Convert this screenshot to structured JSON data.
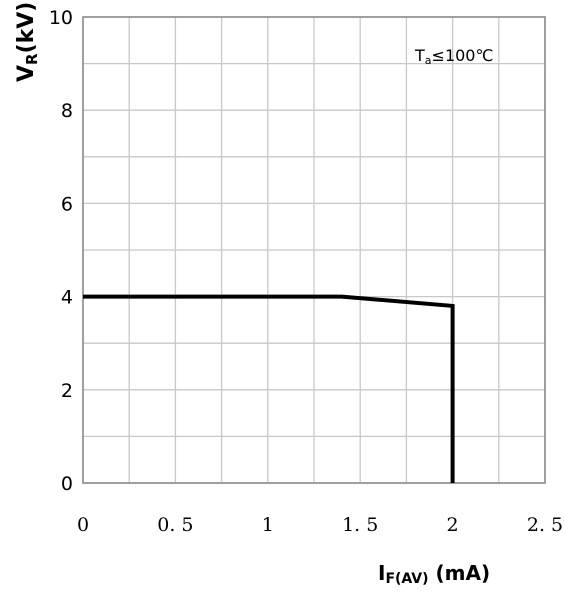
{
  "chart_data": {
    "type": "line",
    "title": "",
    "xlabel": {
      "main": "I",
      "sub": "F(AV)",
      "unit": " (mA)"
    },
    "ylabel": {
      "main": "V",
      "sub": "R",
      "unit": "(kV)"
    },
    "xlim": [
      0,
      2.5
    ],
    "ylim": [
      0,
      10
    ],
    "x_ticks": [
      0,
      0.5,
      1,
      1.5,
      2,
      2.5
    ],
    "x_tick_labels": [
      "0",
      "0. 5",
      "1",
      "1. 5",
      "2",
      "2. 5"
    ],
    "y_ticks": [
      0,
      2,
      4,
      6,
      8,
      10
    ],
    "y_tick_labels": [
      "0",
      "2",
      "4",
      "6",
      "8",
      "10"
    ],
    "grid": true,
    "minor_divisions": 2,
    "annotation": {
      "main": "T",
      "sub": "a",
      "rest": "≤100℃",
      "position": "top-right"
    },
    "series": [
      {
        "x": [
          0,
          1.4,
          2.0,
          2.0
        ],
        "y": [
          4.0,
          4.0,
          3.8,
          0
        ]
      }
    ],
    "line_color": "#000000",
    "grid_color": "#c8c8c8",
    "frame_color": "#8c8c8c"
  }
}
